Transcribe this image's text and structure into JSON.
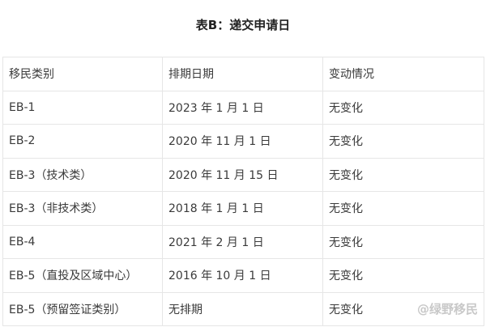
{
  "title": "表B：递交申请日",
  "table": {
    "headers": [
      "移民类别",
      "排期日期",
      "变动情况"
    ],
    "rows": [
      [
        "EB-1",
        "2023 年 1 月 1 日",
        "无变化"
      ],
      [
        "EB-2",
        "2020 年 11 月 1 日",
        "无变化"
      ],
      [
        "EB-3（技术类）",
        "2020 年 11 月 15 日",
        "无变化"
      ],
      [
        "EB-3（非技术类）",
        "2018 年 1 月 1 日",
        "无变化"
      ],
      [
        "EB-4",
        "2021 年 2 月 1 日",
        "无变化"
      ],
      [
        "EB-5（直投及区域中心）",
        "2016 年 10 月 1 日",
        "无变化"
      ],
      [
        "EB-5（预留签证类别）",
        "无排期",
        "无变化"
      ]
    ]
  },
  "watermark": "@绿野移民"
}
